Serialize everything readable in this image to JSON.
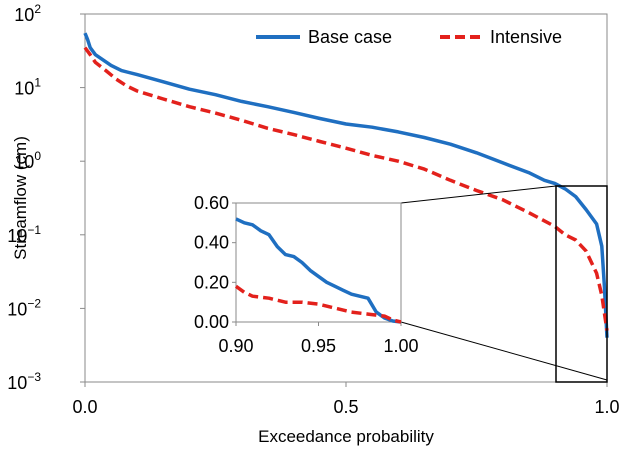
{
  "chart_data": [
    {
      "type": "line",
      "xlabel": "Exceedance probability",
      "ylabel": "Streamflow (cm)",
      "yscale": "log",
      "xlim": [
        0,
        1
      ],
      "ylim": [
        0.001,
        100
      ],
      "x_ticks": [
        "0.0",
        "0.5",
        "1.0"
      ],
      "y_ticks": [
        {
          "base": "10",
          "exp": "-3"
        },
        {
          "base": "10",
          "exp": "-2"
        },
        {
          "base": "10",
          "exp": "-1"
        },
        {
          "base": "10",
          "exp": "0"
        },
        {
          "base": "10",
          "exp": "1"
        },
        {
          "base": "10",
          "exp": "2"
        }
      ],
      "legend_position": "top-right",
      "series": [
        {
          "name": "Base case",
          "color": "#1f6fc1",
          "style": "solid",
          "x": [
            0,
            0.005,
            0.01,
            0.02,
            0.03,
            0.05,
            0.07,
            0.1,
            0.15,
            0.2,
            0.25,
            0.3,
            0.35,
            0.4,
            0.45,
            0.5,
            0.55,
            0.6,
            0.65,
            0.7,
            0.75,
            0.8,
            0.85,
            0.88,
            0.9,
            0.92,
            0.94,
            0.96,
            0.98,
            0.99,
            0.995,
            1.0
          ],
          "y": [
            55,
            45,
            35,
            28,
            25,
            20,
            17,
            15,
            12,
            9.5,
            8,
            6.5,
            5.5,
            4.6,
            3.8,
            3.2,
            2.9,
            2.5,
            2.1,
            1.7,
            1.3,
            0.95,
            0.7,
            0.55,
            0.5,
            0.42,
            0.33,
            0.22,
            0.14,
            0.07,
            0.02,
            0.004
          ]
        },
        {
          "name": "Intensive",
          "color": "#e3211c",
          "style": "dashed",
          "x": [
            0,
            0.01,
            0.02,
            0.04,
            0.06,
            0.08,
            0.1,
            0.15,
            0.2,
            0.25,
            0.3,
            0.35,
            0.4,
            0.45,
            0.5,
            0.55,
            0.6,
            0.65,
            0.7,
            0.75,
            0.8,
            0.85,
            0.9,
            0.92,
            0.94,
            0.96,
            0.98,
            0.99,
            1.0
          ],
          "y": [
            35,
            28,
            22,
            17,
            13,
            10.5,
            9,
            7,
            5.5,
            4.5,
            3.6,
            2.8,
            2.3,
            1.85,
            1.5,
            1.2,
            1.0,
            0.78,
            0.55,
            0.4,
            0.3,
            0.2,
            0.13,
            0.1,
            0.085,
            0.06,
            0.03,
            0.015,
            0.005
          ]
        }
      ]
    },
    {
      "type": "line",
      "inset": true,
      "xlim": [
        0.9,
        1.0
      ],
      "ylim": [
        0,
        0.6
      ],
      "x_ticks": [
        "0.90",
        "0.95",
        "1.00"
      ],
      "y_ticks": [
        "0.00",
        "0.20",
        "0.40",
        "0.60"
      ],
      "series": [
        {
          "name": "Base case",
          "color": "#1f6fc1",
          "style": "solid",
          "x": [
            0.9,
            0.905,
            0.91,
            0.915,
            0.92,
            0.925,
            0.93,
            0.935,
            0.94,
            0.945,
            0.95,
            0.955,
            0.96,
            0.965,
            0.97,
            0.975,
            0.98,
            0.985,
            0.99,
            0.995,
            1.0
          ],
          "y": [
            0.52,
            0.5,
            0.49,
            0.46,
            0.44,
            0.38,
            0.34,
            0.33,
            0.3,
            0.26,
            0.23,
            0.2,
            0.18,
            0.16,
            0.14,
            0.13,
            0.12,
            0.05,
            0.02,
            0.005,
            0.0
          ]
        },
        {
          "name": "Intensive",
          "color": "#e3211c",
          "style": "dashed",
          "x": [
            0.9,
            0.905,
            0.91,
            0.92,
            0.93,
            0.94,
            0.95,
            0.96,
            0.97,
            0.98,
            0.99,
            0.995,
            1.0
          ],
          "y": [
            0.18,
            0.15,
            0.13,
            0.12,
            0.1,
            0.1,
            0.09,
            0.07,
            0.05,
            0.04,
            0.03,
            0.01,
            0.0
          ]
        }
      ]
    }
  ]
}
